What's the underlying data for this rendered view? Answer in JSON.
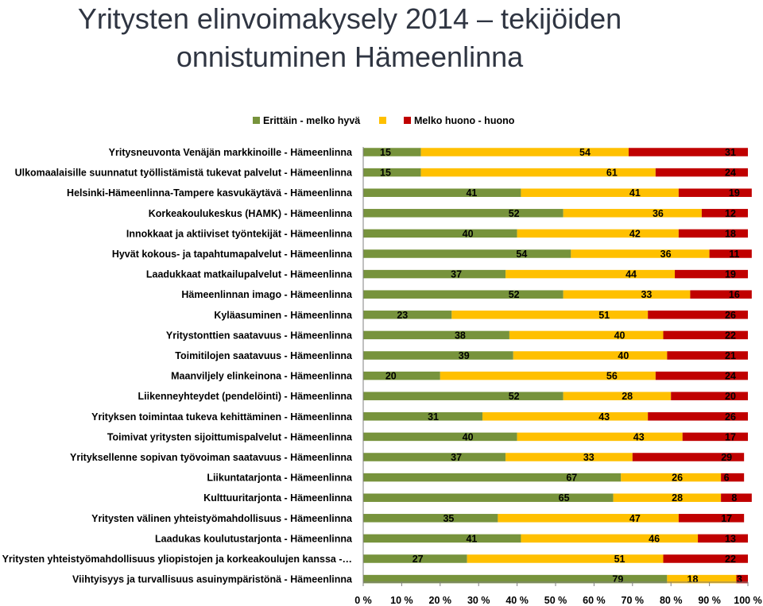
{
  "title_line1": "Yritysten elinvoimakysely 2014 – tekijöiden",
  "title_line2": "onnistuminen Hämeenlinna",
  "chart_data": {
    "type": "bar",
    "orientation": "horizontal",
    "stacked": "percent",
    "xlim": [
      0,
      100
    ],
    "x_ticks": [
      "0 %",
      "10 %",
      "20 %",
      "30 %",
      "40 %",
      "50 %",
      "60 %",
      "70 %",
      "80 %",
      "90 %",
      "100 %"
    ],
    "legend_position": "top",
    "categories": [
      "Yritysneuvonta Venäjän markkinoille - Hämeenlinna",
      "Ulkomaalaisille suunnatut työllistämistä tukevat palvelut - Hämeenlinna",
      "Helsinki-Hämeenlinna-Tampere kasvukäytävä - Hämeenlinna",
      "Korkeakoulukeskus (HAMK) - Hämeenlinna",
      "Innokkaat ja aktiiviset työntekijät - Hämeenlinna",
      "Hyvät kokous- ja tapahtumapalvelut - Hämeenlinna",
      "Laadukkaat matkailupalvelut - Hämeenlinna",
      "Hämeenlinnan imago - Hämeenlinna",
      "Kyläasuminen - Hämeenlinna",
      "Yritystonttien saatavuus - Hämeenlinna",
      "Toimitilojen saatavuus - Hämeenlinna",
      "Maanviljely elinkeinona - Hämeenlinna",
      "Liikenneyhteydet (pendelöinti) - Hämeenlinna",
      "Yrityksen toimintaa tukeva kehittäminen - Hämeenlinna",
      "Toimivat yritysten sijoittumispalvelut - Hämeenlinna",
      "Yrityksellenne sopivan työvoiman saatavuus - Hämeenlinna",
      "Liikuntatarjonta - Hämeenlinna",
      "Kulttuuritarjonta - Hämeenlinna",
      "Yritysten välinen yhteistyömahdollisuus - Hämeenlinna",
      "Laadukas koulutustarjonta - Hämeenlinna",
      "Yritysten yhteistyömahdollisuus yliopistojen ja korkeakoulujen kanssa -…",
      "Viihtyisyys ja turvallisuus asuinympäristönä - Hämeenlinna"
    ],
    "series": [
      {
        "name": "Erittäin - melko hyvä",
        "color": "#77933c",
        "values": [
          15,
          15,
          41,
          52,
          40,
          54,
          37,
          52,
          23,
          38,
          39,
          20,
          52,
          31,
          40,
          37,
          67,
          65,
          35,
          41,
          27,
          79
        ]
      },
      {
        "name": "",
        "color": "#ffc000",
        "values": [
          54,
          61,
          41,
          36,
          42,
          36,
          44,
          33,
          51,
          40,
          40,
          56,
          28,
          43,
          43,
          33,
          26,
          28,
          47,
          46,
          51,
          18
        ]
      },
      {
        "name": "Melko huono - huono",
        "color": "#c00000",
        "values": [
          31,
          24,
          19,
          12,
          18,
          11,
          19,
          16,
          26,
          22,
          21,
          24,
          20,
          26,
          17,
          29,
          6,
          8,
          17,
          13,
          22,
          3
        ]
      }
    ]
  }
}
